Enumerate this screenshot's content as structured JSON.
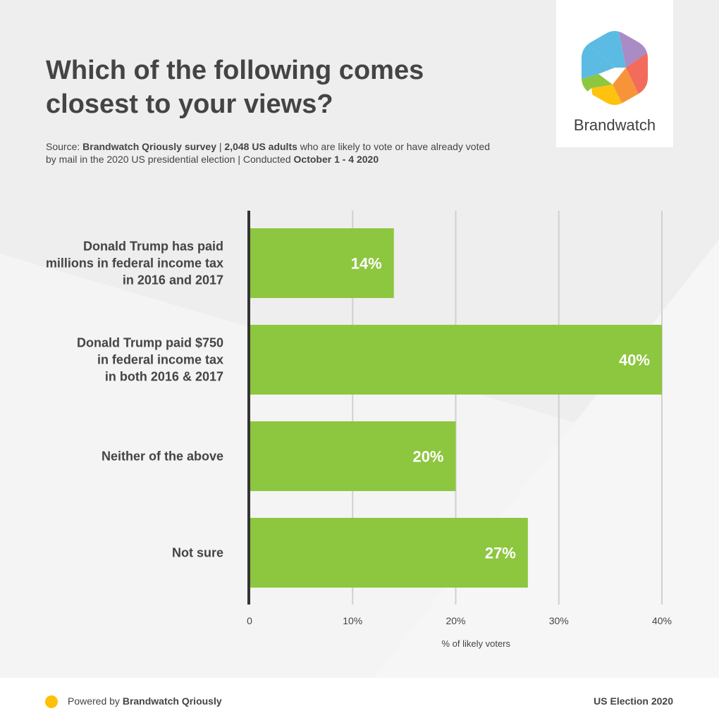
{
  "title_lines": [
    "Which of the following comes",
    "closest to your views?"
  ],
  "source": {
    "prefix": "Source: ",
    "survey": "Brandwatch Qriously survey",
    "sep1": " | ",
    "sample": "2,048 US adults",
    "middle": " who are likely to vote or have already voted by mail in the 2020 US presidential election | Conducted ",
    "dates": "October 1 - 4 2020"
  },
  "brand": {
    "name": "Brandwatch",
    "colors": [
      "#5bbbe3",
      "#a98bc6",
      "#f26b5b",
      "#f7943a",
      "#ffc20e",
      "#8dc63f"
    ]
  },
  "footer": {
    "powered_prefix": "Powered by ",
    "powered_brand": "Brandwatch Qriously",
    "right": "US Election 2020",
    "dot_color": "#ffc107"
  },
  "colors": {
    "bar": "#8dc63f",
    "axis": "#333333",
    "grid": "#d0d0d0"
  },
  "chart_data": {
    "type": "bar",
    "orientation": "horizontal",
    "categories": [
      [
        "Donald Trump has paid",
        "millions in federal income tax",
        "in 2016 and 2017"
      ],
      [
        "Donald Trump paid $750",
        "in federal income tax",
        "in both 2016 & 2017"
      ],
      [
        "Neither of the above"
      ],
      [
        "Not sure"
      ]
    ],
    "values": [
      14,
      40,
      20,
      27
    ],
    "value_labels": [
      "14%",
      "40%",
      "20%",
      "27%"
    ],
    "xlim": [
      0,
      40
    ],
    "xticks": [
      0,
      10,
      20,
      30,
      40
    ],
    "xtick_labels": [
      "0",
      "10%",
      "20%",
      "30%",
      "40%"
    ],
    "xlabel": "% of likely voters",
    "grid": true
  }
}
